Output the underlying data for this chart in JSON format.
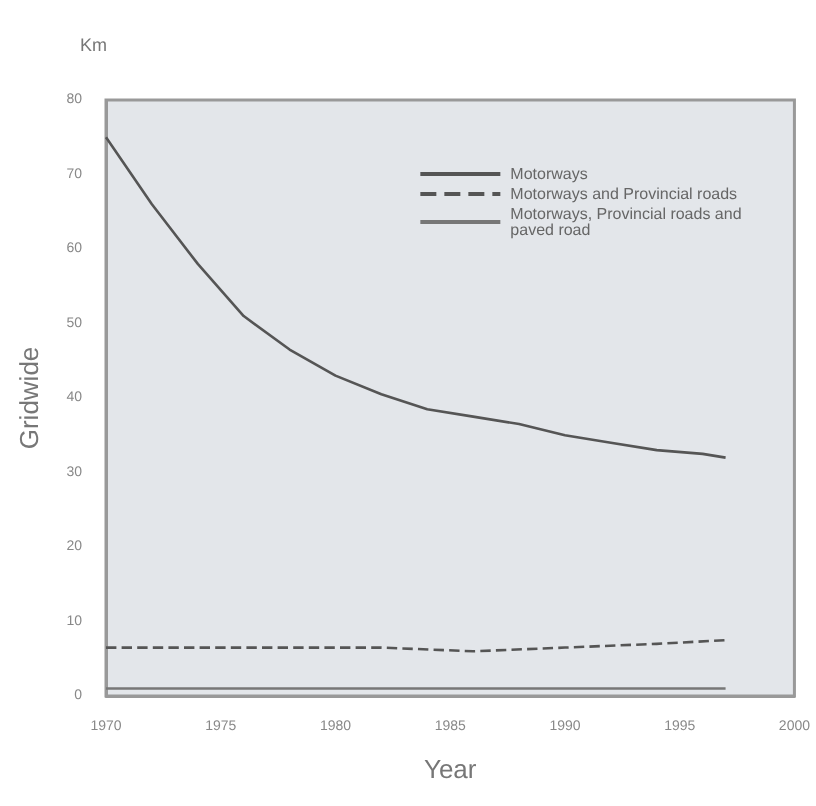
{
  "chart_data": {
    "type": "line",
    "xlabel": "Year",
    "ylabel": "Gridwide",
    "annotations": [
      "Km"
    ],
    "xlim": [
      1970,
      2000
    ],
    "xticks": [
      1970,
      1975,
      1980,
      1985,
      1990,
      1995,
      2000
    ],
    "ylim": [
      0,
      80
    ],
    "yticks": [
      0,
      10,
      20,
      30,
      40,
      50,
      60,
      70,
      80
    ],
    "grid": false,
    "legend": "top right",
    "marker": "none",
    "series": [
      {
        "name": "Motorways",
        "color": "#555555",
        "line_style": "solid",
        "x": [
          1970,
          1972,
          1974,
          1976,
          1978,
          1980,
          1982,
          1984,
          1986,
          1988,
          1990,
          1992,
          1994,
          1996,
          1997
        ],
        "values": [
          75,
          66,
          58,
          51,
          46.5,
          43,
          40.5,
          38.5,
          37.5,
          36.5,
          35,
          34,
          33,
          32.5,
          32
        ]
      },
      {
        "name": "Motorways and Provincial roads",
        "color": "#555555",
        "line_style": "dashed",
        "x": [
          1970,
          1974,
          1978,
          1982,
          1986,
          1990,
          1994,
          1997
        ],
        "values": [
          6.5,
          6.5,
          6.5,
          6.5,
          6,
          6.5,
          7,
          7.5
        ]
      },
      {
        "name": "Motorways, Provincial roads and paved road",
        "color": "#777777",
        "line_style": "solid",
        "x": [
          1970,
          1980,
          1990,
          1997
        ],
        "values": [
          1,
          1,
          1,
          1
        ]
      }
    ]
  }
}
